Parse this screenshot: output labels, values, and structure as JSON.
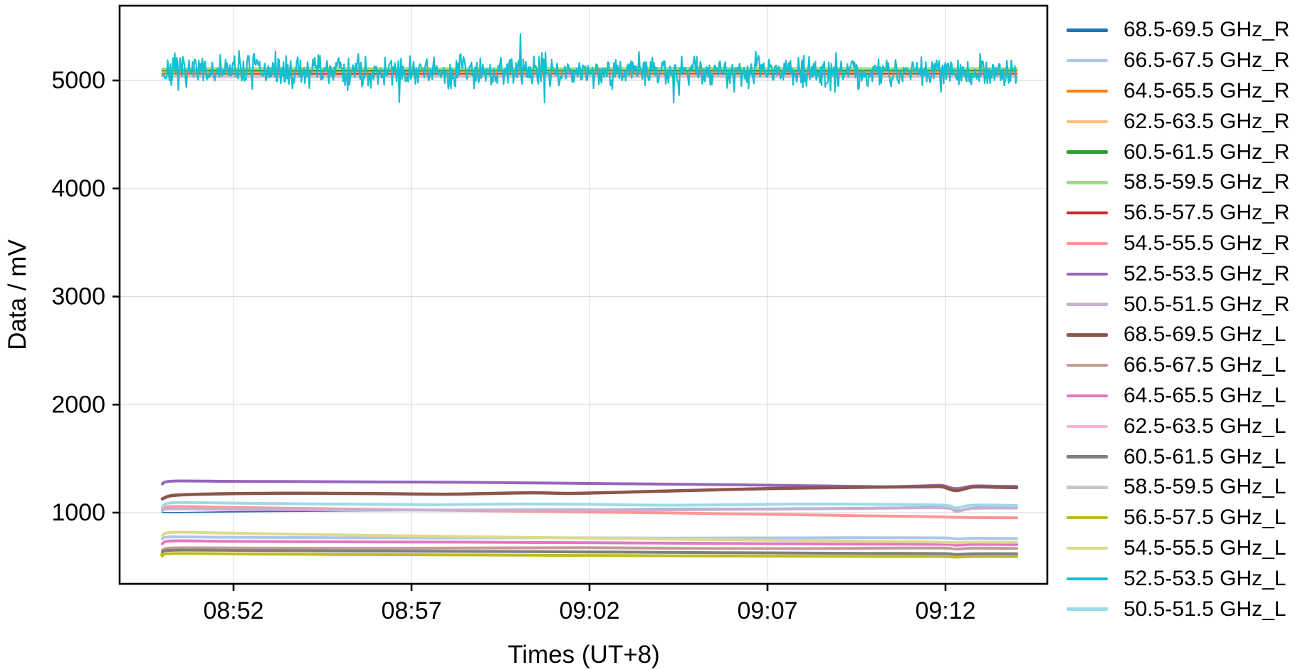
{
  "chart_data": {
    "type": "line",
    "title": "",
    "xlabel": "Times (UT+8)",
    "ylabel": "Data / mV",
    "x_start": "08:50",
    "x_end": "09:14",
    "x_ticks": [
      {
        "t": 2,
        "label": "08:52"
      },
      {
        "t": 7,
        "label": "08:57"
      },
      {
        "t": 12,
        "label": "09:02"
      },
      {
        "t": 17,
        "label": "09:07"
      },
      {
        "t": 22,
        "label": "09:12"
      }
    ],
    "y_ticks": [
      1000,
      2000,
      3000,
      4000,
      5000
    ],
    "ylim": [
      340,
      5690
    ],
    "grid": true,
    "legend_position": "right-outside",
    "series": [
      {
        "name": "68.5-69.5 GHz_R",
        "color": "#1f77b4",
        "width": 1.8,
        "keypoints": [
          [
            0,
            1004
          ],
          [
            0.3,
            1000
          ],
          [
            2,
            1008
          ],
          [
            5,
            1015
          ],
          [
            8,
            1022
          ],
          [
            11,
            1030
          ],
          [
            14,
            1036
          ],
          [
            17,
            1040
          ],
          [
            19.5,
            1046
          ],
          [
            21.3,
            1052
          ],
          [
            21.9,
            1056
          ],
          [
            22.3,
            1022
          ],
          [
            22.8,
            1048
          ],
          [
            23.5,
            1050
          ],
          [
            24,
            1048
          ]
        ]
      },
      {
        "name": "66.5-67.5 GHz_R",
        "color": "#aec7e8",
        "width": 4,
        "keypoints": [
          [
            0,
            760
          ],
          [
            0.3,
            776
          ],
          [
            2,
            772
          ],
          [
            5,
            768
          ],
          [
            8,
            766
          ],
          [
            11,
            768
          ],
          [
            14,
            764
          ],
          [
            17,
            766
          ],
          [
            19.5,
            768
          ],
          [
            21.9,
            766
          ],
          [
            22.3,
            757
          ],
          [
            22.8,
            763
          ],
          [
            24,
            760
          ]
        ]
      },
      {
        "name": "64.5-65.5 GHz_R",
        "color": "#ff7f0e",
        "width": 2.5,
        "keypoints": [
          [
            0,
            5066
          ],
          [
            3,
            5071
          ],
          [
            8,
            5069
          ],
          [
            14,
            5072
          ],
          [
            20,
            5070
          ],
          [
            24,
            5071
          ]
        ]
      },
      {
        "name": "62.5-63.5 GHz_R",
        "color": "#ffbb78",
        "width": 2.5,
        "keypoints": [
          [
            0,
            5080
          ],
          [
            4,
            5077
          ],
          [
            10,
            5081
          ],
          [
            16,
            5079
          ],
          [
            24,
            5080
          ]
        ]
      },
      {
        "name": "60.5-61.5 GHz_R",
        "color": "#2ca02c",
        "width": 2.5,
        "keypoints": [
          [
            0,
            5092
          ],
          [
            5,
            5090
          ],
          [
            12,
            5093
          ],
          [
            18,
            5091
          ],
          [
            24,
            5092
          ]
        ]
      },
      {
        "name": "58.5-59.5 GHz_R",
        "color": "#98df8a",
        "width": 3.5,
        "keypoints": [
          [
            0,
            5108
          ],
          [
            4,
            5112
          ],
          [
            9,
            5109
          ],
          [
            15,
            5113
          ],
          [
            21,
            5110
          ],
          [
            24,
            5111
          ]
        ]
      },
      {
        "name": "56.5-57.5 GHz_R",
        "color": "#d62728",
        "width": 2.5,
        "keypoints": [
          [
            0,
            5055
          ],
          [
            6,
            5058
          ],
          [
            13,
            5056
          ],
          [
            19,
            5059
          ],
          [
            24,
            5057
          ]
        ]
      },
      {
        "name": "54.5-55.5 GHz_R",
        "color": "#ff9896",
        "width": 4,
        "keypoints": [
          [
            0,
            1040
          ],
          [
            0.3,
            1056
          ],
          [
            2,
            1048
          ],
          [
            5,
            1034
          ],
          [
            8,
            1022
          ],
          [
            11,
            1010
          ],
          [
            14,
            998
          ],
          [
            17,
            985
          ],
          [
            19.5,
            972
          ],
          [
            21.5,
            963
          ],
          [
            22.5,
            956
          ],
          [
            24,
            952
          ]
        ]
      },
      {
        "name": "52.5-53.5 GHz_R",
        "color": "#9467bd",
        "width": 4,
        "keypoints": [
          [
            0,
            1266
          ],
          [
            0.3,
            1292
          ],
          [
            2,
            1289
          ],
          [
            4,
            1287
          ],
          [
            6,
            1284
          ],
          [
            8,
            1282
          ],
          [
            10,
            1276
          ],
          [
            12,
            1270
          ],
          [
            14,
            1264
          ],
          [
            16,
            1258
          ],
          [
            18,
            1250
          ],
          [
            19.5,
            1243
          ],
          [
            20.5,
            1240
          ],
          [
            21.5,
            1250
          ],
          [
            21.9,
            1252
          ],
          [
            22.3,
            1222
          ],
          [
            22.8,
            1247
          ],
          [
            23.5,
            1244
          ],
          [
            24,
            1242
          ]
        ]
      },
      {
        "name": "50.5-51.5 GHz_R",
        "color": "#c5b0d5",
        "width": 4,
        "keypoints": [
          [
            0,
            1020
          ],
          [
            0.3,
            1036
          ],
          [
            2,
            1030
          ],
          [
            5,
            1026
          ],
          [
            8,
            1024
          ],
          [
            11,
            1027
          ],
          [
            14,
            1026
          ],
          [
            17,
            1032
          ],
          [
            19.5,
            1038
          ],
          [
            21.9,
            1044
          ],
          [
            22.3,
            1012
          ],
          [
            22.8,
            1040
          ],
          [
            24,
            1042
          ]
        ]
      },
      {
        "name": "68.5-69.5 GHz_L",
        "color": "#8c564b",
        "width": 4.5,
        "keypoints": [
          [
            0,
            1128
          ],
          [
            0.4,
            1162
          ],
          [
            2,
            1176
          ],
          [
            4,
            1180
          ],
          [
            6,
            1176
          ],
          [
            8,
            1171
          ],
          [
            9.5,
            1180
          ],
          [
            10.5,
            1184
          ],
          [
            11.5,
            1178
          ],
          [
            13,
            1190
          ],
          [
            15,
            1207
          ],
          [
            17,
            1222
          ],
          [
            18.5,
            1230
          ],
          [
            20,
            1236
          ],
          [
            21.5,
            1240
          ],
          [
            21.9,
            1240
          ],
          [
            22.3,
            1204
          ],
          [
            22.8,
            1238
          ],
          [
            23.5,
            1234
          ],
          [
            24,
            1231
          ]
        ]
      },
      {
        "name": "66.5-67.5 GHz_L",
        "color": "#c49c94",
        "width": 4,
        "keypoints": [
          [
            0,
            652
          ],
          [
            0.4,
            674
          ],
          [
            3,
            671
          ],
          [
            6,
            669
          ],
          [
            9,
            673
          ],
          [
            12,
            675
          ],
          [
            15,
            669
          ],
          [
            18,
            667
          ],
          [
            20,
            671
          ],
          [
            21.9,
            672
          ],
          [
            22.3,
            663
          ],
          [
            22.8,
            671
          ],
          [
            24,
            669
          ]
        ]
      },
      {
        "name": "64.5-65.5 GHz_L",
        "color": "#e377c2",
        "width": 4,
        "keypoints": [
          [
            0,
            712
          ],
          [
            0.3,
            739
          ],
          [
            2,
            734
          ],
          [
            5,
            730
          ],
          [
            8,
            727
          ],
          [
            11,
            723
          ],
          [
            14,
            718
          ],
          [
            17,
            713
          ],
          [
            19.5,
            709
          ],
          [
            21.9,
            707
          ],
          [
            22.3,
            699
          ],
          [
            22.8,
            706
          ],
          [
            24,
            704
          ]
        ]
      },
      {
        "name": "62.5-63.5 GHz_L",
        "color": "#f7b6d2",
        "width": 3.5,
        "keypoints": [
          [
            0,
            5036
          ],
          [
            5,
            5033
          ],
          [
            11,
            5037
          ],
          [
            17,
            5034
          ],
          [
            24,
            5035
          ]
        ]
      },
      {
        "name": "60.5-61.5 GHz_L",
        "color": "#7f7f7f",
        "width": 4,
        "keypoints": [
          [
            0,
            636
          ],
          [
            0.4,
            653
          ],
          [
            3,
            649
          ],
          [
            6,
            645
          ],
          [
            9,
            641
          ],
          [
            12,
            636
          ],
          [
            15,
            631
          ],
          [
            18,
            626
          ],
          [
            20,
            623
          ],
          [
            21.9,
            621
          ],
          [
            22.3,
            613
          ],
          [
            22.8,
            620
          ],
          [
            24,
            619
          ]
        ]
      },
      {
        "name": "58.5-59.5 GHz_L",
        "color": "#c7c7c7",
        "width": 3.5,
        "keypoints": [
          [
            0,
            5046
          ],
          [
            6,
            5043
          ],
          [
            12,
            5047
          ],
          [
            18,
            5044
          ],
          [
            24,
            5045
          ]
        ]
      },
      {
        "name": "56.5-57.5 GHz_L",
        "color": "#bcbd22",
        "width": 4,
        "keypoints": [
          [
            0,
            598
          ],
          [
            0.3,
            621
          ],
          [
            3,
            616
          ],
          [
            6,
            612
          ],
          [
            9,
            608
          ],
          [
            12,
            604
          ],
          [
            15,
            600
          ],
          [
            18,
            597
          ],
          [
            20,
            595
          ],
          [
            21.9,
            594
          ],
          [
            22.3,
            588
          ],
          [
            22.8,
            594
          ],
          [
            24,
            593
          ]
        ]
      },
      {
        "name": "54.5-55.5 GHz_L",
        "color": "#dbdb8d",
        "width": 4,
        "keypoints": [
          [
            0,
            788
          ],
          [
            0.3,
            818
          ],
          [
            2,
            810
          ],
          [
            5,
            794
          ],
          [
            8,
            780
          ],
          [
            11,
            768
          ],
          [
            14,
            756
          ],
          [
            17,
            745
          ],
          [
            19.5,
            736
          ],
          [
            21.5,
            729
          ],
          [
            22.3,
            722
          ],
          [
            22.8,
            727
          ],
          [
            24,
            725
          ]
        ]
      },
      {
        "name": "52.5-53.5 GHz_L",
        "color": "#17becf",
        "width": 2.2,
        "noise": {
          "base": 5085,
          "sigma": 72,
          "points": 960,
          "seed": 7,
          "spike_prob": 0.006,
          "spike_min": 120,
          "spike_max": 330,
          "clamp": [
            4795,
            5480
          ]
        }
      },
      {
        "name": "50.5-51.5 GHz_L",
        "color": "#9edae5",
        "width": 4,
        "keypoints": [
          [
            0,
            1052
          ],
          [
            0.3,
            1092
          ],
          [
            2,
            1088
          ],
          [
            4,
            1082
          ],
          [
            6,
            1077
          ],
          [
            8,
            1074
          ],
          [
            10,
            1081
          ],
          [
            12,
            1077
          ],
          [
            14,
            1069
          ],
          [
            16,
            1074
          ],
          [
            18,
            1080
          ],
          [
            20,
            1077
          ],
          [
            21.9,
            1070
          ],
          [
            22.3,
            1044
          ],
          [
            22.8,
            1070
          ],
          [
            24,
            1066
          ]
        ]
      }
    ]
  }
}
